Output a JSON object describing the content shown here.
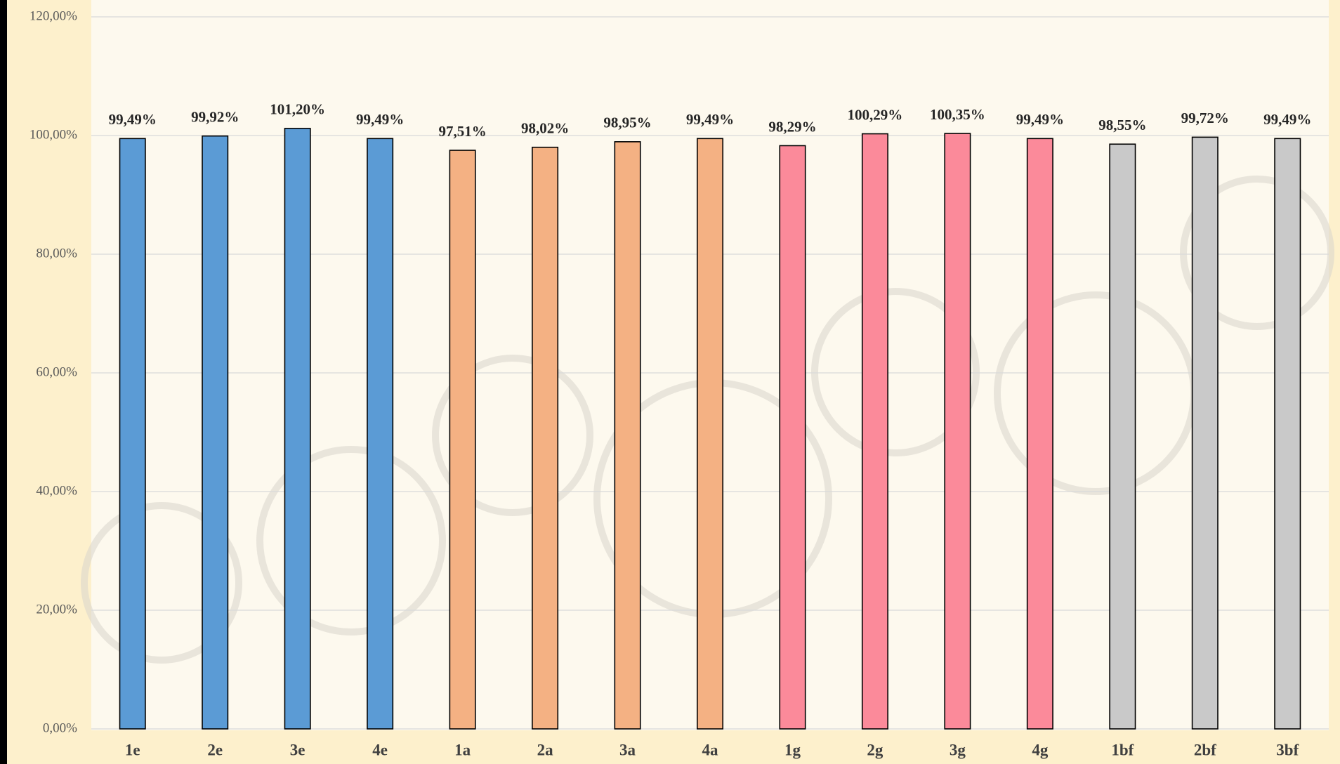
{
  "chart_data": {
    "type": "bar",
    "categories": [
      "1e",
      "2e",
      "3e",
      "4e",
      "1a",
      "2a",
      "3a",
      "4a",
      "1g",
      "2g",
      "3g",
      "4g",
      "1bf",
      "2bf",
      "3bf"
    ],
    "values": [
      99.49,
      99.92,
      101.2,
      99.49,
      97.51,
      98.02,
      98.95,
      99.49,
      98.29,
      100.29,
      100.35,
      99.49,
      98.55,
      99.72,
      99.49
    ],
    "value_labels": [
      "99,49%",
      "99,92%",
      "101,20%",
      "99,49%",
      "97,51%",
      "98,02%",
      "98,95%",
      "99,49%",
      "98,29%",
      "100,29%",
      "100,35%",
      "99,49%",
      "98,55%",
      "99,72%",
      "99,49%"
    ],
    "colors": [
      "#5b9bd5",
      "#5b9bd5",
      "#5b9bd5",
      "#5b9bd5",
      "#f4b183",
      "#f4b183",
      "#f4b183",
      "#f4b183",
      "#fb8a9a",
      "#fb8a9a",
      "#fb8a9a",
      "#fb8a9a",
      "#c9c9c9",
      "#c9c9c9",
      "#c9c9c9"
    ],
    "ylim": [
      0,
      120
    ],
    "yticks": [
      {
        "value": 0,
        "label": "0,00%"
      },
      {
        "value": 20,
        "label": "20,00%"
      },
      {
        "value": 40,
        "label": "40,00%"
      },
      {
        "value": 60,
        "label": "60,00%"
      },
      {
        "value": 80,
        "label": "80,00%"
      },
      {
        "value": 100,
        "label": "100,00%"
      },
      {
        "value": 120,
        "label": "120,00%"
      }
    ],
    "grid": true
  }
}
